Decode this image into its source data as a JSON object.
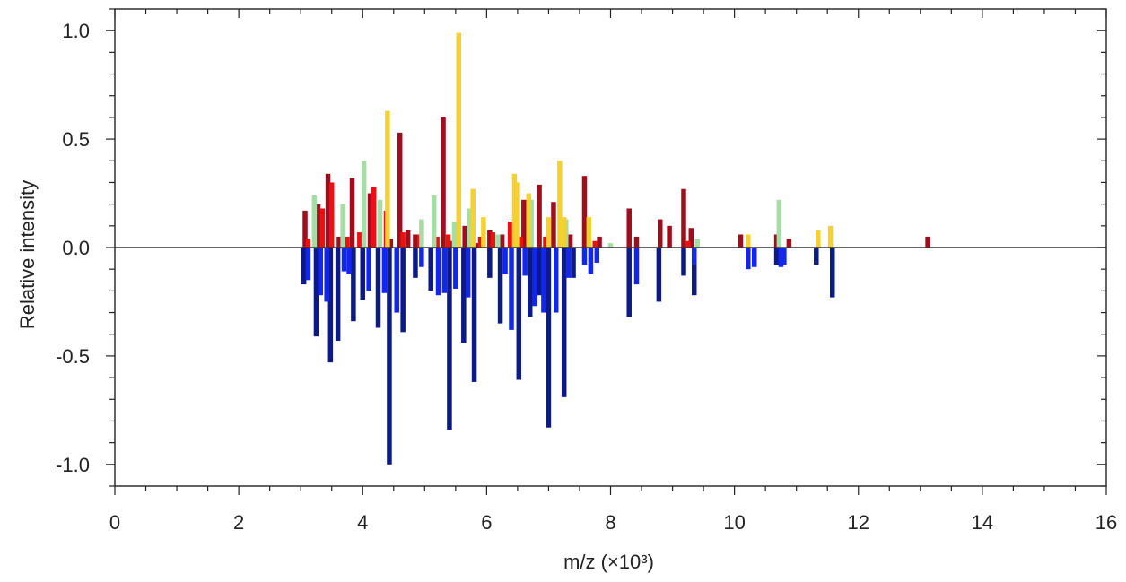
{
  "chart_data": {
    "type": "bar",
    "subtype": "mirrored-stick-spectrum",
    "xlabel": "m/z (×10³)",
    "ylabel": "Relative intensity",
    "xlim": [
      0,
      16
    ],
    "ylim": [
      -1.1,
      1.1
    ],
    "xticks": [
      "0",
      "2",
      "4",
      "6",
      "8",
      "10",
      "12",
      "14",
      "16"
    ],
    "yticks": [
      "1.0",
      "0.5",
      "0.0",
      "-0.5",
      "-1.0"
    ],
    "grid": false,
    "legend": "none",
    "colors": {
      "dark_red": "#a00d1c",
      "red": "#ee1010",
      "light_green": "#a6dca6",
      "yellow": "#f3d22f",
      "dark_blue": "#0c1a86",
      "blue": "#1326ee",
      "zero_line": "#333333",
      "frame": "#222222"
    },
    "series": [
      {
        "color_key": "dark_red",
        "x": [
          3.07,
          3.28,
          3.44,
          3.62,
          3.83,
          4.12,
          4.45,
          4.6,
          4.73,
          4.85,
          5.3,
          5.42,
          5.65,
          5.83,
          6.05,
          6.25,
          6.42,
          6.6,
          6.85,
          7.08,
          7.35,
          7.58,
          7.82,
          8.3,
          8.42,
          8.8,
          8.95,
          9.18,
          9.3,
          10.1,
          10.68,
          10.88,
          13.12
        ],
        "values": [
          0.17,
          0.2,
          0.34,
          0.05,
          0.32,
          0.25,
          0.04,
          0.53,
          0.08,
          0.06,
          0.6,
          0.03,
          0.1,
          0.02,
          0.08,
          0.06,
          0.04,
          0.22,
          0.29,
          0.21,
          0.06,
          0.33,
          0.05,
          0.18,
          0.05,
          0.13,
          0.1,
          0.27,
          0.09,
          0.06,
          0.06,
          0.04,
          0.05
        ]
      },
      {
        "color_key": "red",
        "x": [
          3.12,
          3.35,
          3.5,
          3.75,
          3.95,
          4.18,
          4.38,
          4.65,
          4.92,
          5.2,
          5.38,
          5.9,
          6.1,
          6.38,
          6.55,
          6.95,
          7.22,
          7.75,
          9.25
        ],
        "values": [
          0.04,
          0.18,
          0.3,
          0.05,
          0.07,
          0.28,
          0.17,
          0.07,
          0.06,
          0.05,
          0.06,
          0.05,
          0.07,
          0.12,
          0.05,
          0.05,
          0.05,
          0.03,
          0.03
        ]
      },
      {
        "color_key": "light_green",
        "x": [
          3.22,
          3.68,
          4.02,
          4.28,
          4.95,
          5.15,
          5.48,
          5.72,
          6.18,
          6.72,
          7.28,
          8.0,
          9.4,
          10.72
        ],
        "values": [
          0.24,
          0.2,
          0.4,
          0.22,
          0.13,
          0.24,
          0.12,
          0.18,
          0.06,
          0.22,
          0.13,
          0.02,
          0.04,
          0.22
        ]
      },
      {
        "color_key": "yellow",
        "x": [
          4.4,
          5.55,
          5.78,
          5.95,
          6.45,
          6.5,
          6.68,
          7.0,
          7.18,
          7.25,
          7.65,
          10.22,
          11.35,
          11.55
        ],
        "values": [
          0.63,
          0.99,
          0.27,
          0.14,
          0.34,
          0.3,
          0.25,
          0.14,
          0.4,
          0.14,
          0.14,
          0.06,
          0.08,
          0.1
        ]
      },
      {
        "color_key": "dark_blue",
        "x": [
          3.05,
          3.25,
          3.48,
          3.6,
          3.85,
          4.0,
          4.25,
          4.43,
          4.65,
          4.85,
          5.1,
          5.4,
          5.63,
          5.8,
          6.05,
          6.22,
          6.52,
          6.7,
          6.85,
          7.0,
          7.25,
          7.4,
          8.3,
          8.78,
          9.18,
          9.35,
          10.68,
          11.32,
          11.58
        ],
        "values": [
          -0.17,
          -0.41,
          -0.53,
          -0.43,
          -0.34,
          -0.24,
          -0.37,
          -1.0,
          -0.39,
          -0.14,
          -0.2,
          -0.84,
          -0.44,
          -0.62,
          -0.14,
          -0.35,
          -0.61,
          -0.32,
          -0.22,
          -0.83,
          -0.69,
          -0.14,
          -0.32,
          -0.25,
          -0.13,
          -0.22,
          -0.08,
          -0.08,
          -0.23
        ]
      },
      {
        "color_key": "blue",
        "x": [
          3.12,
          3.32,
          3.42,
          3.7,
          3.78,
          4.1,
          4.35,
          4.55,
          4.95,
          5.22,
          5.32,
          5.5,
          5.7,
          6.3,
          6.4,
          6.62,
          6.78,
          6.92,
          7.12,
          7.32,
          7.58,
          7.68,
          7.78,
          8.42,
          9.35,
          10.22,
          10.32,
          10.75,
          10.8
        ],
        "values": [
          -0.15,
          -0.22,
          -0.25,
          -0.11,
          -0.12,
          -0.2,
          -0.21,
          -0.3,
          -0.09,
          -0.22,
          -0.21,
          -0.19,
          -0.23,
          -0.12,
          -0.38,
          -0.13,
          -0.27,
          -0.3,
          -0.3,
          -0.14,
          -0.08,
          -0.12,
          -0.07,
          -0.17,
          -0.08,
          -0.1,
          -0.09,
          -0.09,
          -0.08
        ]
      }
    ]
  }
}
